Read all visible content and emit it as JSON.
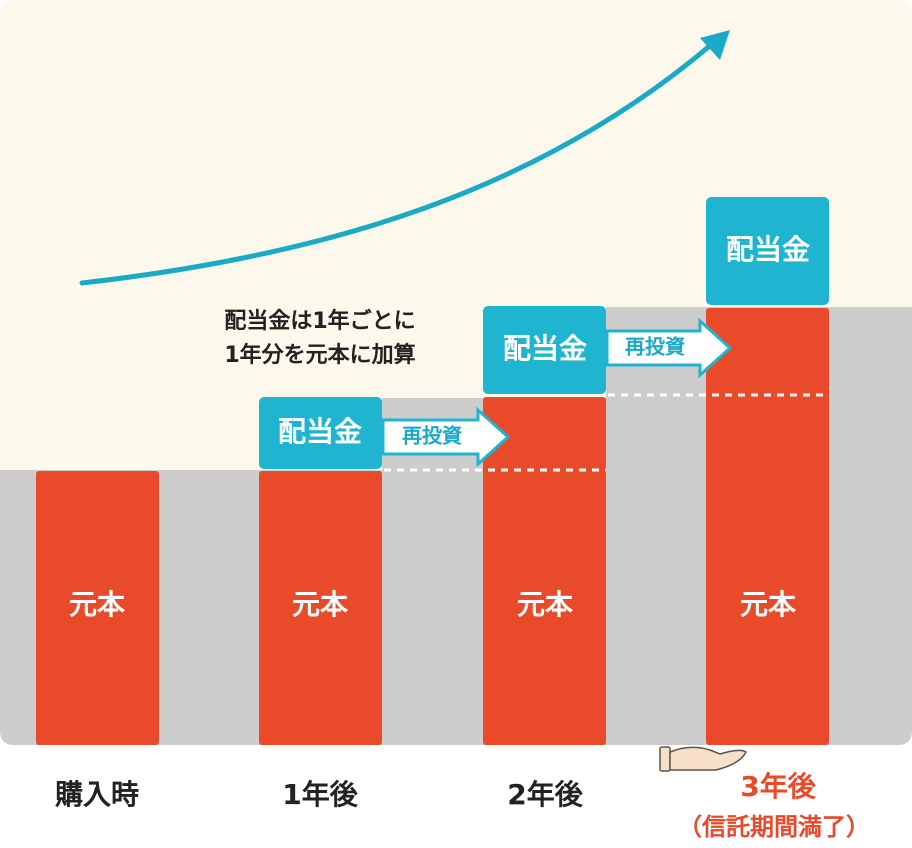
{
  "note_text": [
    "配当金は1年ごとに",
    "1年分を元本に加算"
  ],
  "columns": [
    {
      "label": "購入時",
      "principal": "元本"
    },
    {
      "label": "1年後",
      "principal": "元本"
    },
    {
      "label": "2年後",
      "principal": "元本"
    },
    {
      "label": "3年後",
      "principal": "元本"
    }
  ],
  "dividends": [
    {
      "label": "配当金",
      "reinvest": "再投資"
    },
    {
      "label": "配当金",
      "reinvest": "再投資"
    },
    {
      "label": "配当金"
    }
  ],
  "maturity": "（信託期間満了）"
}
